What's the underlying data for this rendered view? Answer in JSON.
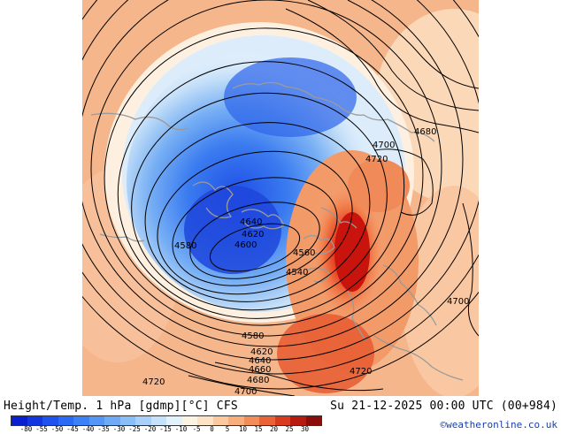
{
  "caption": {
    "title": "Height/Temp. 1 hPa [gdmp][°C] CFS",
    "valid_time": "Su 21-12-2025 00:00 UTC (00+984)",
    "credit": "©weatheronline.co.uk"
  },
  "colorbar": {
    "labels": [
      "-80",
      "-55",
      "-50",
      "-45",
      "-40",
      "-35",
      "-30",
      "-25",
      "-20",
      "-15",
      "-10",
      "-5",
      "0",
      "5",
      "10",
      "15",
      "20",
      "25",
      "30"
    ],
    "colors": [
      "#0a1fd0",
      "#1436e0",
      "#1f52ee",
      "#2a6af4",
      "#3b82f6",
      "#5496f5",
      "#6eaaf6",
      "#8abef8",
      "#a8d0fa",
      "#c4e2fc",
      "#e2f2fd",
      "#fdf3e2",
      "#fde2c4",
      "#fbc9a0",
      "#f8ad7c",
      "#f28c58",
      "#ea6236",
      "#d93a1e",
      "#b81a10",
      "#8c0c08"
    ]
  },
  "contour_labels": [
    {
      "id": "4680-ne",
      "text": "4680"
    },
    {
      "id": "4700-n",
      "text": "4700"
    },
    {
      "id": "4720-n",
      "text": "4720"
    },
    {
      "id": "4640-c",
      "text": "4640"
    },
    {
      "id": "4620-c",
      "text": "4620"
    },
    {
      "id": "4600-c",
      "text": "4600"
    },
    {
      "id": "4580-w",
      "text": "4580"
    },
    {
      "id": "4560-c",
      "text": "4560"
    },
    {
      "id": "4540-c",
      "text": "4540"
    },
    {
      "id": "4580-s",
      "text": "4580"
    },
    {
      "id": "4620-s",
      "text": "4620"
    },
    {
      "id": "4640-s",
      "text": "4640"
    },
    {
      "id": "4660-s",
      "text": "4660"
    },
    {
      "id": "4680-s",
      "text": "4680"
    },
    {
      "id": "4700-s",
      "text": "4700"
    },
    {
      "id": "4720-sw",
      "text": "4720"
    },
    {
      "id": "4720-se",
      "text": "4720"
    },
    {
      "id": "4700-e",
      "text": "4700"
    }
  ]
}
